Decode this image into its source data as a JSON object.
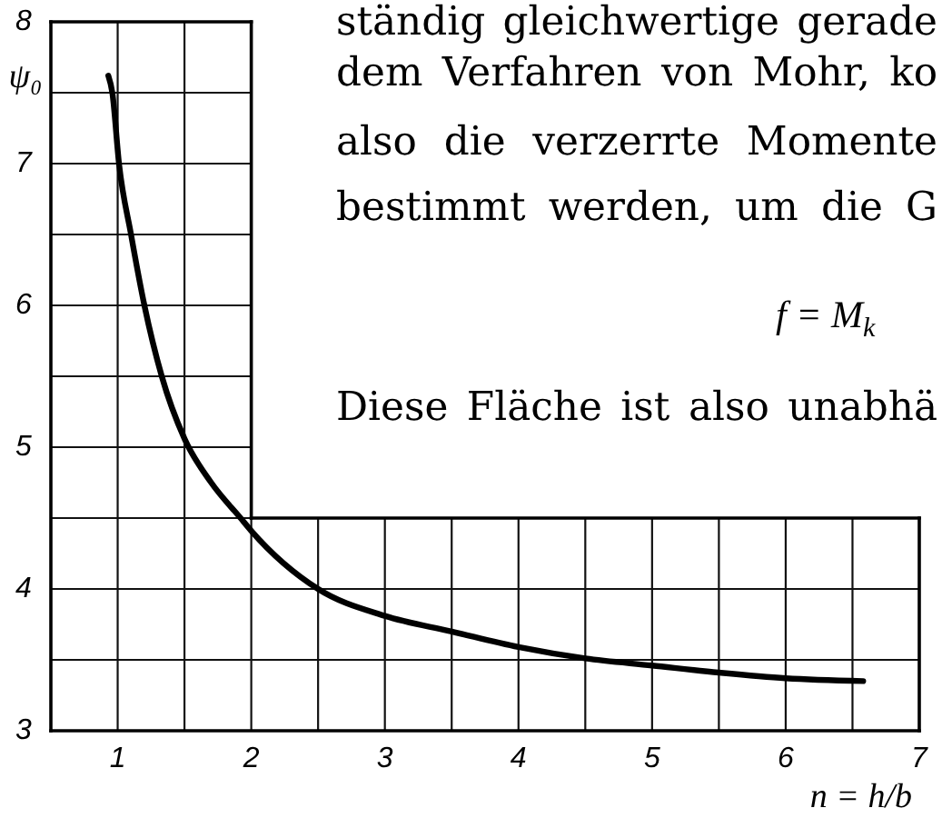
{
  "chart_data": {
    "type": "line",
    "xlabel": "n = h/b",
    "ylabel": "ψ₀",
    "x": [
      0.93,
      0.96,
      1.01,
      1.1,
      1.2,
      1.33,
      1.5,
      1.7,
      1.92,
      2.0,
      2.5,
      3.0,
      3.5,
      4.0,
      4.5,
      5.0,
      5.5,
      6.0,
      6.58
    ],
    "series": [
      {
        "color": "#000000",
        "values": [
          7.62,
          7.5,
          7.0,
          6.5,
          6.0,
          5.5,
          5.06,
          4.75,
          4.5,
          4.41,
          4.0,
          3.81,
          3.7,
          3.59,
          3.51,
          3.46,
          3.41,
          3.37,
          3.35
        ]
      }
    ],
    "xlim": [
      0.5,
      7
    ],
    "ylim": [
      3,
      8
    ],
    "xticks": [
      1,
      {
        "value": 1.5,
        "label": null
      },
      2,
      {
        "value": 2.5,
        "label": null
      },
      3,
      {
        "value": 3.5,
        "label": null
      },
      4,
      {
        "value": 4.5,
        "label": null
      },
      5,
      {
        "value": 5.5,
        "label": null
      },
      6,
      {
        "value": 6.5,
        "label": null
      },
      7
    ],
    "yticks": [
      3,
      {
        "value": 3.5,
        "label": null
      },
      4,
      {
        "value": 4.5,
        "label": null
      },
      5,
      {
        "value": 5.5,
        "label": null
      },
      6,
      {
        "value": 6.5,
        "label": null
      },
      7,
      {
        "value": 7.5,
        "label": null
      },
      8
    ],
    "grid": true,
    "line_style": "solid",
    "annotations": [
      "ständig gleichwertige gerade",
      "dem Verfahren von Mohr, ko",
      "also die verzerrte Momente",
      "bestimmt werden, um die G",
      "f = M$_{k}$",
      "Diese Fläche ist also unabhä"
    ]
  }
}
